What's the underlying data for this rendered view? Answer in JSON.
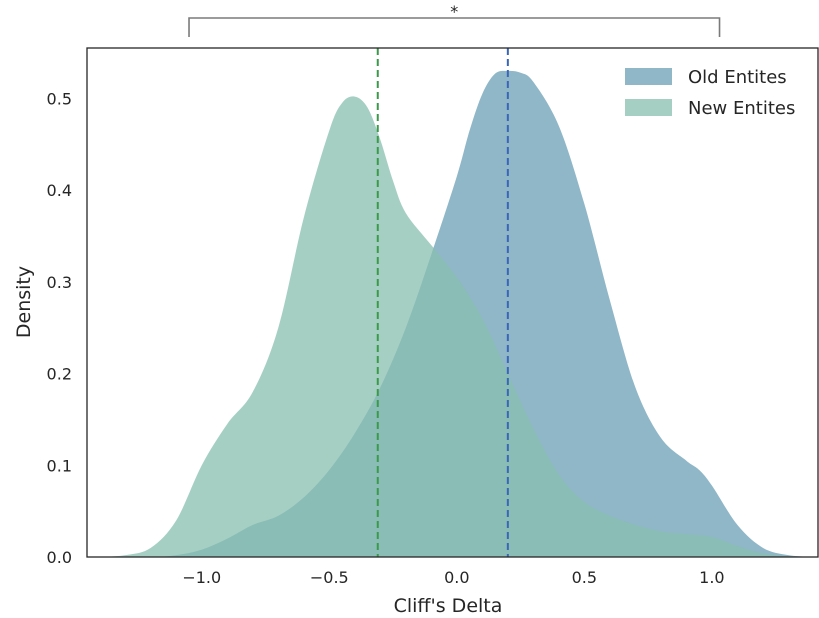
{
  "chart_data": {
    "type": "area",
    "xlabel": "Cliff's Delta",
    "ylabel": "Density",
    "xlim": [
      -1.45,
      1.42
    ],
    "ylim": [
      0,
      0.555
    ],
    "xticks": [
      -1.0,
      -0.5,
      0.0,
      0.5,
      1.0
    ],
    "xtick_labels": [
      "−1.0",
      "−0.5",
      "0.0",
      "0.5",
      "1.0"
    ],
    "yticks": [
      0.0,
      0.1,
      0.2,
      0.3,
      0.4,
      0.5
    ],
    "ytick_labels": [
      "0.0",
      "0.1",
      "0.2",
      "0.3",
      "0.4",
      "0.5"
    ],
    "grid": false,
    "legend_position": "top-right",
    "series": [
      {
        "name": "Old Entites",
        "color": "#6a9fb5",
        "opacity": 0.75,
        "mean": 0.2,
        "x": [
          -1.4,
          -1.2,
          -1.1,
          -1.0,
          -0.9,
          -0.8,
          -0.7,
          -0.6,
          -0.5,
          -0.4,
          -0.3,
          -0.2,
          -0.1,
          0.0,
          0.05,
          0.1,
          0.15,
          0.2,
          0.25,
          0.3,
          0.4,
          0.5,
          0.6,
          0.7,
          0.8,
          0.9,
          0.95,
          1.0,
          1.1,
          1.2,
          1.3,
          1.4
        ],
        "y": [
          0.0,
          0.0,
          0.002,
          0.008,
          0.02,
          0.035,
          0.045,
          0.065,
          0.095,
          0.135,
          0.185,
          0.25,
          0.33,
          0.415,
          0.465,
          0.505,
          0.527,
          0.53,
          0.528,
          0.518,
          0.47,
          0.385,
          0.28,
          0.185,
          0.13,
          0.105,
          0.095,
          0.078,
          0.035,
          0.01,
          0.002,
          0.0
        ]
      },
      {
        "name": "New Entites",
        "color": "#88bfb0",
        "opacity": 0.75,
        "mean": -0.31,
        "x": [
          -1.4,
          -1.3,
          -1.2,
          -1.1,
          -1.0,
          -0.9,
          -0.8,
          -0.7,
          -0.6,
          -0.5,
          -0.45,
          -0.4,
          -0.35,
          -0.3,
          -0.25,
          -0.2,
          -0.1,
          0.0,
          0.1,
          0.2,
          0.3,
          0.4,
          0.5,
          0.6,
          0.7,
          0.8,
          0.9,
          1.0,
          1.1,
          1.2,
          1.3,
          1.4
        ],
        "y": [
          0.0,
          0.002,
          0.01,
          0.04,
          0.1,
          0.145,
          0.18,
          0.25,
          0.37,
          0.465,
          0.495,
          0.502,
          0.49,
          0.455,
          0.41,
          0.375,
          0.34,
          0.305,
          0.26,
          0.2,
          0.14,
          0.09,
          0.06,
          0.045,
          0.035,
          0.028,
          0.025,
          0.022,
          0.012,
          0.004,
          0.001,
          0.0
        ]
      }
    ],
    "mean_lines": [
      {
        "x": -0.31,
        "color": "#3a9a4a"
      },
      {
        "x": 0.2,
        "color": "#3a66b8"
      }
    ],
    "annotation": {
      "text": "*",
      "x_start": -1.05,
      "x_end": 1.03
    }
  }
}
